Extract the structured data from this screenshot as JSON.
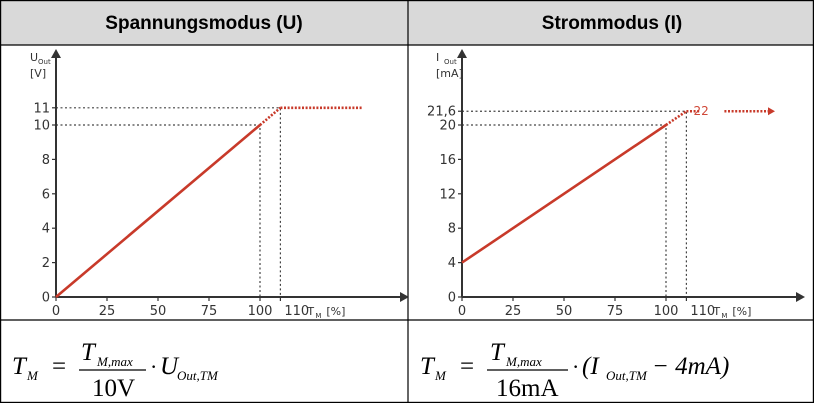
{
  "colors": {
    "header_bg": "#d9d9d9",
    "series": "#c83a2a",
    "axis": "#333333",
    "guide": "#444444",
    "grid_border": "#000000"
  },
  "headers": {
    "left": "Spannungsmodus (U)",
    "right": "Strommodus (I)"
  },
  "chart_data": [
    {
      "type": "line",
      "ylabel": {
        "main": "U",
        "sub": "Out",
        "unit": "[V]"
      },
      "xlabel": {
        "main": "T",
        "sub": "M",
        "unit": "[%]"
      },
      "x_ticks": [
        "0",
        "25",
        "50",
        "75",
        "100",
        "110"
      ],
      "y_ticks": [
        "0",
        "2",
        "4",
        "6",
        "8",
        "10",
        "11"
      ],
      "xlim": [
        0,
        120
      ],
      "ylim": [
        0,
        12
      ],
      "series": [
        {
          "x": [
            0,
            100
          ],
          "y": [
            0,
            10
          ],
          "style": "solid"
        },
        {
          "x": [
            100,
            110
          ],
          "y": [
            10,
            11
          ],
          "style": "dotted"
        },
        {
          "x": [
            110,
            125
          ],
          "y": [
            11,
            11
          ],
          "style": "dotted-arrow"
        }
      ],
      "guides": [
        {
          "x": 100,
          "y": 10
        },
        {
          "x": 110,
          "y": 11
        }
      ]
    },
    {
      "type": "line",
      "ylabel": {
        "main": "I",
        "sub": "Out",
        "unit": "[mA]"
      },
      "xlabel": {
        "main": "T",
        "sub": "M",
        "unit": "[%]"
      },
      "x_ticks": [
        "0",
        "25",
        "50",
        "75",
        "100",
        "110"
      ],
      "y_ticks": [
        "0",
        "4",
        "8",
        "12",
        "16",
        "20",
        "21,6"
      ],
      "xlim": [
        0,
        120
      ],
      "ylim": [
        0,
        24
      ],
      "series": [
        {
          "x": [
            0,
            100
          ],
          "y": [
            4,
            20
          ],
          "style": "solid"
        },
        {
          "x": [
            100,
            110
          ],
          "y": [
            20,
            21.6
          ],
          "style": "dotted"
        },
        {
          "x": [
            110,
            125
          ],
          "y": [
            21.6,
            21.6
          ],
          "style": "dotted-arrow"
        }
      ],
      "annotations": [
        {
          "text": "22",
          "x": 114,
          "y": 21.6
        }
      ],
      "guides": [
        {
          "x": 100,
          "y": 20
        },
        {
          "x": 110,
          "y": 21.6
        }
      ]
    }
  ],
  "formulas": {
    "left": {
      "lhs": "T",
      "lhs_sub": "M",
      "num": "T",
      "num_sub": "M,max",
      "den": "10V",
      "tail": "U",
      "tail_sub": "Out,TM"
    },
    "right": {
      "lhs": "T",
      "lhs_sub": "M",
      "num": "T",
      "num_sub": "M,max",
      "den": "16mA",
      "tail_open": "(I",
      "tail_sub": "Out,TM",
      "tail_close": "− 4mA)"
    }
  }
}
